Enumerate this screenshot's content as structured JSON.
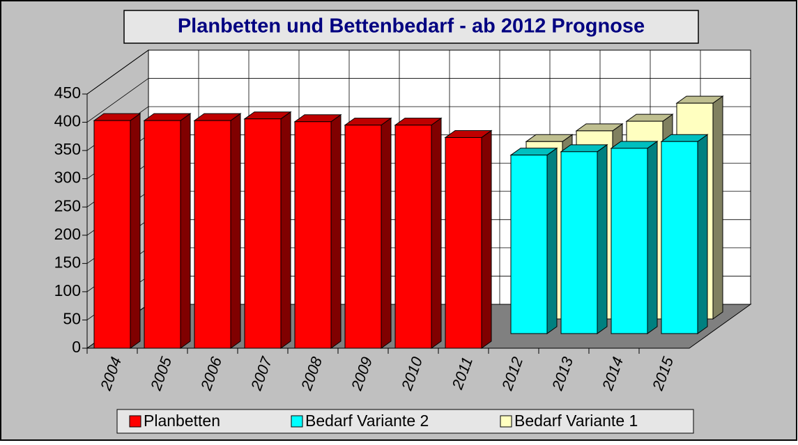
{
  "chart_data": {
    "type": "bar3d",
    "title": "Planbetten und Bettenbedarf - ab 2012 Prognose",
    "categories": [
      "2004",
      "2005",
      "2006",
      "2007",
      "2008",
      "2009",
      "2010",
      "2011",
      "2012",
      "2013",
      "2014",
      "2015"
    ],
    "series": [
      {
        "name": "Planbetten",
        "color": "#ff0000",
        "values": [
          403,
          403,
          403,
          406,
          401,
          395,
          395,
          373,
          null,
          null,
          null,
          null
        ]
      },
      {
        "name": "Bedarf Variante 2",
        "color": "#00ffff",
        "values": [
          null,
          null,
          null,
          null,
          null,
          null,
          null,
          null,
          316,
          322,
          328,
          340
        ]
      },
      {
        "name": "Bedarf Variante 1",
        "color": "#ffffc0",
        "values": [
          null,
          null,
          null,
          null,
          null,
          null,
          null,
          null,
          314,
          333,
          350,
          382
        ]
      }
    ],
    "ylim": [
      0,
      450
    ],
    "yticks": [
      0,
      50,
      100,
      150,
      200,
      250,
      300,
      350,
      400,
      450
    ],
    "grid": true
  }
}
